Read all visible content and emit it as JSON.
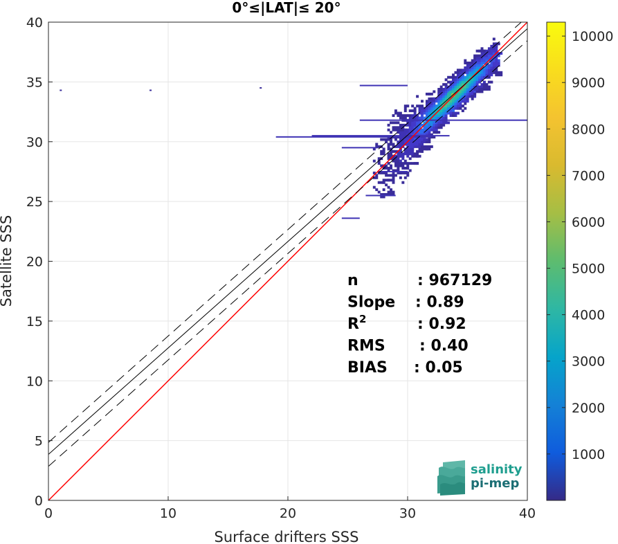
{
  "chart_data": {
    "type": "heatmap",
    "title": "0°≤|LAT|≤ 20°",
    "xlabel": "Surface drifters SSS",
    "ylabel": "Satellite SSS",
    "xlim": [
      0,
      40
    ],
    "ylim": [
      0,
      40
    ],
    "xticks": [
      "0",
      "10",
      "20",
      "30",
      "40"
    ],
    "yticks": [
      "0",
      "5",
      "10",
      "15",
      "20",
      "25",
      "30",
      "35",
      "40"
    ],
    "grid": true,
    "colorbar": {
      "range": [
        0,
        10300
      ],
      "ticks": [
        "1000",
        "2000",
        "3000",
        "4000",
        "5000",
        "6000",
        "7000",
        "8000",
        "9000",
        "10000"
      ],
      "colormap": "parula"
    },
    "density_region": {
      "x_range": [
        24.5,
        37.5
      ],
      "y_range": [
        23.5,
        38.8
      ],
      "peak_center": [
        33.8,
        33.9
      ],
      "outliers": [
        [
          1.0,
          34.3
        ],
        [
          8.5,
          34.3
        ],
        [
          17.7,
          34.5
        ]
      ]
    },
    "lines": [
      {
        "name": "identity",
        "slope": 1.0,
        "intercept": 0.0,
        "color": "#ff0000",
        "style": "solid"
      },
      {
        "name": "fit",
        "slope": 0.89,
        "intercept": 3.85,
        "color": "#000000",
        "style": "solid"
      },
      {
        "name": "fit_upper",
        "slope": 0.89,
        "intercept": 4.85,
        "color": "#000000",
        "style": "dashed"
      },
      {
        "name": "fit_lower",
        "slope": 0.89,
        "intercept": 2.85,
        "color": "#000000",
        "style": "dashed"
      }
    ],
    "stats": [
      {
        "label": "n",
        "value": ": 967129"
      },
      {
        "label": "Slope",
        "value": ": 0.89"
      },
      {
        "label": "R",
        "sup": "2",
        "value": ": 0.92"
      },
      {
        "label": "RMS",
        "value": ": 0.40"
      },
      {
        "label": "BIAS",
        "value": ": 0.05"
      }
    ]
  },
  "logo": {
    "line1": "salinity",
    "line2": "pi-mep"
  }
}
